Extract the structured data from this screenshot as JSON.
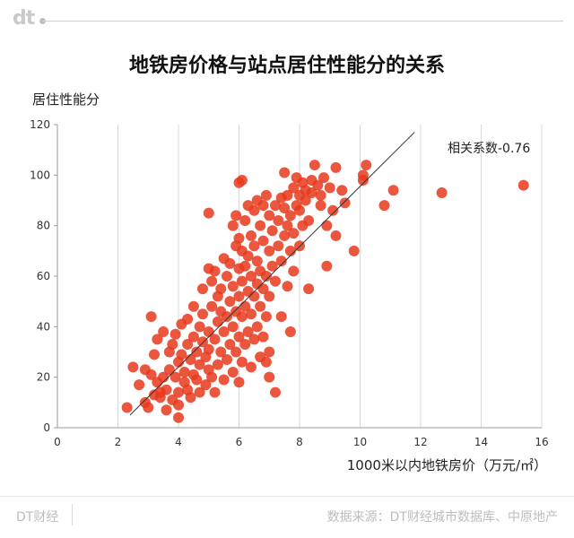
{
  "header": {
    "logo": "dt"
  },
  "footer": {
    "brand": "DT财经",
    "source": "数据来源：DT财经城市数据库、中原地产"
  },
  "chart_data": {
    "type": "scatter",
    "title": "地铁房价格与站点居住性能分的关系",
    "ylabel": "居住性能分",
    "xlabel": "1000米以内地铁房价（万元/㎡）",
    "annotation": "相关系数-0.76",
    "xlim": [
      0,
      16
    ],
    "ylim": [
      0,
      120
    ],
    "xticks": [
      0,
      2,
      4,
      6,
      8,
      10,
      12,
      14,
      16
    ],
    "yticks": [
      0,
      20,
      40,
      60,
      80,
      100,
      120
    ],
    "grid": "vertical",
    "color": "#e8381c",
    "trendline": [
      [
        2.4,
        5
      ],
      [
        11.8,
        117
      ]
    ],
    "points": [
      [
        2.3,
        8
      ],
      [
        2.5,
        24
      ],
      [
        2.7,
        17
      ],
      [
        2.9,
        10
      ],
      [
        2.9,
        23
      ],
      [
        3.0,
        8
      ],
      [
        3.1,
        21
      ],
      [
        3.1,
        44
      ],
      [
        3.2,
        13
      ],
      [
        3.2,
        29
      ],
      [
        3.3,
        18
      ],
      [
        3.3,
        35
      ],
      [
        3.4,
        12
      ],
      [
        3.4,
        14
      ],
      [
        3.5,
        20
      ],
      [
        3.5,
        38
      ],
      [
        3.6,
        7
      ],
      [
        3.6,
        15
      ],
      [
        3.7,
        23
      ],
      [
        3.7,
        30
      ],
      [
        3.8,
        11
      ],
      [
        3.8,
        33
      ],
      [
        3.9,
        20
      ],
      [
        3.9,
        37
      ],
      [
        4.0,
        4
      ],
      [
        4.0,
        9
      ],
      [
        4.0,
        14
      ],
      [
        4.0,
        26
      ],
      [
        4.1,
        29
      ],
      [
        4.1,
        41
      ],
      [
        4.2,
        18
      ],
      [
        4.2,
        22
      ],
      [
        4.3,
        15
      ],
      [
        4.3,
        33
      ],
      [
        4.3,
        43
      ],
      [
        4.4,
        12
      ],
      [
        4.4,
        27
      ],
      [
        4.5,
        21
      ],
      [
        4.5,
        36
      ],
      [
        4.5,
        48
      ],
      [
        4.6,
        19
      ],
      [
        4.6,
        30
      ],
      [
        4.7,
        14
      ],
      [
        4.7,
        25
      ],
      [
        4.7,
        40
      ],
      [
        4.8,
        34
      ],
      [
        4.8,
        45
      ],
      [
        4.8,
        55
      ],
      [
        4.9,
        17
      ],
      [
        4.9,
        28
      ],
      [
        5.0,
        23
      ],
      [
        5.0,
        31
      ],
      [
        5.0,
        38
      ],
      [
        5.0,
        63
      ],
      [
        5.0,
        85
      ],
      [
        5.1,
        20
      ],
      [
        5.1,
        48
      ],
      [
        5.1,
        58
      ],
      [
        5.2,
        14
      ],
      [
        5.2,
        35
      ],
      [
        5.2,
        62
      ],
      [
        5.3,
        25
      ],
      [
        5.3,
        42
      ],
      [
        5.3,
        52
      ],
      [
        5.4,
        30
      ],
      [
        5.4,
        46
      ],
      [
        5.4,
        55
      ],
      [
        5.5,
        19
      ],
      [
        5.5,
        38
      ],
      [
        5.5,
        67
      ],
      [
        5.6,
        27
      ],
      [
        5.6,
        44
      ],
      [
        5.6,
        60
      ],
      [
        5.7,
        33
      ],
      [
        5.7,
        50
      ],
      [
        5.7,
        65
      ],
      [
        5.8,
        22
      ],
      [
        5.8,
        40
      ],
      [
        5.8,
        56
      ],
      [
        5.8,
        80
      ],
      [
        5.9,
        30
      ],
      [
        5.9,
        46
      ],
      [
        5.9,
        72
      ],
      [
        5.9,
        84
      ],
      [
        6.0,
        18
      ],
      [
        6.0,
        36
      ],
      [
        6.0,
        52
      ],
      [
        6.0,
        63
      ],
      [
        6.0,
        75
      ],
      [
        6.0,
        97
      ],
      [
        6.1,
        26
      ],
      [
        6.1,
        44
      ],
      [
        6.1,
        58
      ],
      [
        6.1,
        70
      ],
      [
        6.1,
        98
      ],
      [
        6.2,
        33
      ],
      [
        6.2,
        48
      ],
      [
        6.2,
        64
      ],
      [
        6.2,
        82
      ],
      [
        6.3,
        38
      ],
      [
        6.3,
        54
      ],
      [
        6.3,
        68
      ],
      [
        6.3,
        88
      ],
      [
        6.4,
        24
      ],
      [
        6.4,
        45
      ],
      [
        6.4,
        60
      ],
      [
        6.4,
        76
      ],
      [
        6.5,
        35
      ],
      [
        6.5,
        52
      ],
      [
        6.5,
        72
      ],
      [
        6.5,
        86
      ],
      [
        6.6,
        40
      ],
      [
        6.6,
        57
      ],
      [
        6.6,
        66
      ],
      [
        6.6,
        90
      ],
      [
        6.7,
        28
      ],
      [
        6.7,
        48
      ],
      [
        6.7,
        62
      ],
      [
        6.7,
        80
      ],
      [
        6.8,
        36
      ],
      [
        6.8,
        55
      ],
      [
        6.8,
        74
      ],
      [
        6.8,
        88
      ],
      [
        6.9,
        26
      ],
      [
        6.9,
        44
      ],
      [
        6.9,
        60
      ],
      [
        6.9,
        92
      ],
      [
        7.0,
        20
      ],
      [
        7.0,
        30
      ],
      [
        7.0,
        52
      ],
      [
        7.0,
        70
      ],
      [
        7.0,
        84
      ],
      [
        7.1,
        64
      ],
      [
        7.1,
        78
      ],
      [
        7.2,
        14
      ],
      [
        7.2,
        58
      ],
      [
        7.2,
        88
      ],
      [
        7.3,
        72
      ],
      [
        7.3,
        82
      ],
      [
        7.4,
        44
      ],
      [
        7.4,
        66
      ],
      [
        7.4,
        91
      ],
      [
        7.5,
        76
      ],
      [
        7.5,
        87
      ],
      [
        7.5,
        101
      ],
      [
        7.6,
        56
      ],
      [
        7.6,
        80
      ],
      [
        7.6,
        92
      ],
      [
        7.7,
        38
      ],
      [
        7.7,
        70
      ],
      [
        7.7,
        84
      ],
      [
        7.8,
        62
      ],
      [
        7.8,
        77
      ],
      [
        7.8,
        95
      ],
      [
        7.9,
        88
      ],
      [
        7.9,
        99
      ],
      [
        8.0,
        72
      ],
      [
        8.0,
        86
      ],
      [
        8.0,
        92
      ],
      [
        8.1,
        80
      ],
      [
        8.1,
        97
      ],
      [
        8.2,
        90
      ],
      [
        8.2,
        94
      ],
      [
        8.3,
        55
      ],
      [
        8.3,
        82
      ],
      [
        8.4,
        93
      ],
      [
        8.4,
        98
      ],
      [
        8.5,
        104
      ],
      [
        8.6,
        96
      ],
      [
        8.7,
        88
      ],
      [
        8.7,
        92
      ],
      [
        8.8,
        99
      ],
      [
        8.9,
        64
      ],
      [
        8.9,
        80
      ],
      [
        9.0,
        95
      ],
      [
        9.1,
        86
      ],
      [
        9.2,
        76
      ],
      [
        9.2,
        103
      ],
      [
        9.4,
        94
      ],
      [
        9.5,
        89
      ],
      [
        9.8,
        70
      ],
      [
        10.1,
        98
      ],
      [
        10.1,
        100
      ],
      [
        10.2,
        104
      ],
      [
        10.8,
        88
      ],
      [
        11.1,
        94
      ],
      [
        12.7,
        93
      ],
      [
        15.4,
        96
      ]
    ]
  }
}
